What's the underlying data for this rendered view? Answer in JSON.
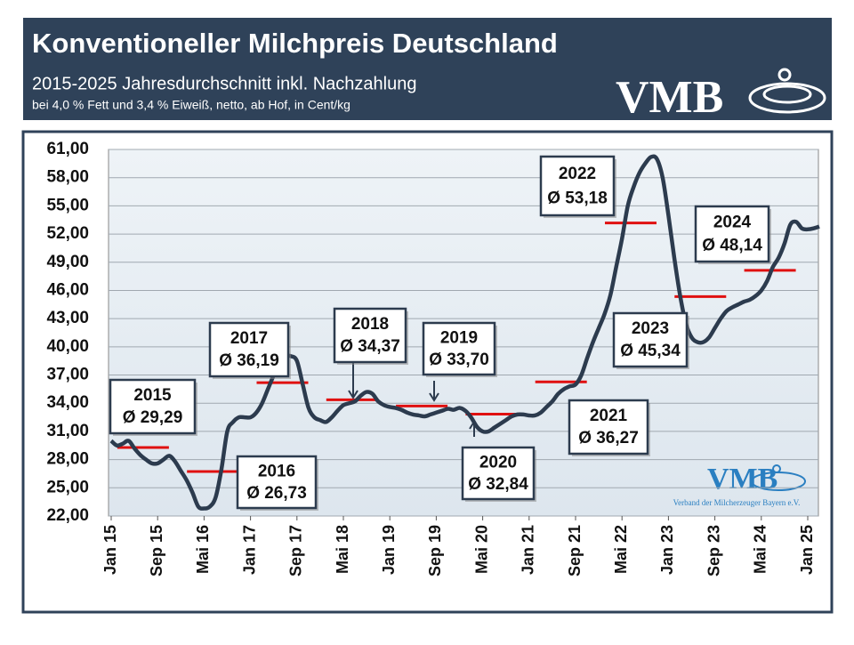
{
  "header": {
    "title": "Konventioneller Milchpreis Deutschland",
    "subtitle": "2015-2025 Jahresdurchschnitt inkl. Nachzahlung",
    "note": "bei 4,0 % Fett und 3,4 % Eiweiß, netto, ab Hof, in Cent/kg",
    "logo": "VMB"
  },
  "footer_logo": {
    "text": "VMB",
    "caption": "Verband der Milcherzeuger Bayern e.V."
  },
  "chart_data": {
    "type": "line",
    "categories": [
      "Jan 15",
      null,
      null,
      null,
      null,
      null,
      null,
      null,
      "Sep 15",
      null,
      null,
      null,
      null,
      null,
      null,
      null,
      "Mai 16",
      null,
      null,
      null,
      null,
      null,
      null,
      null,
      "Jan 17",
      null,
      null,
      null,
      null,
      null,
      null,
      null,
      "Sep 17",
      null,
      null,
      null,
      null,
      null,
      null,
      null,
      "Mai 18",
      null,
      null,
      null,
      null,
      null,
      null,
      null,
      "Jan 19",
      null,
      null,
      null,
      null,
      null,
      null,
      null,
      "Sep 19",
      null,
      null,
      null,
      null,
      null,
      null,
      null,
      "Mai 20",
      null,
      null,
      null,
      null,
      null,
      null,
      null,
      "Jan 21",
      null,
      null,
      null,
      null,
      null,
      null,
      null,
      "Sep 21",
      null,
      null,
      null,
      null,
      null,
      null,
      null,
      "Mai 22",
      null,
      null,
      null,
      null,
      null,
      null,
      null,
      "Jan 23",
      null,
      null,
      null,
      null,
      null,
      null,
      null,
      "Sep 23",
      null,
      null,
      null,
      null,
      null,
      null,
      null,
      "Mai 24",
      null,
      null,
      null,
      null,
      null,
      null,
      null,
      "Jan 25",
      null,
      null
    ],
    "series": [
      {
        "name": "Milchpreis",
        "color": "#2c3b4e",
        "values": [
          30.0,
          29.5,
          29.7,
          30.0,
          29.2,
          28.5,
          28.0,
          27.6,
          27.6,
          28.0,
          28.4,
          27.8,
          26.8,
          25.8,
          24.5,
          23.0,
          22.8,
          23.0,
          24.0,
          27.0,
          31.0,
          32.0,
          32.5,
          32.5,
          32.5,
          33.0,
          34.0,
          35.5,
          37.0,
          38.5,
          39.0,
          39.0,
          38.5,
          36.0,
          33.5,
          32.5,
          32.2,
          32.0,
          32.5,
          33.2,
          33.8,
          34.0,
          34.2,
          34.8,
          35.2,
          35.0,
          34.2,
          33.8,
          33.6,
          33.5,
          33.3,
          33.0,
          32.8,
          32.7,
          32.6,
          32.8,
          33.0,
          33.2,
          33.4,
          33.3,
          33.5,
          33.2,
          32.5,
          31.5,
          31.0,
          31.0,
          31.4,
          31.8,
          32.2,
          32.6,
          32.8,
          32.8,
          32.7,
          32.7,
          33.0,
          33.6,
          34.2,
          35.0,
          35.5,
          35.8,
          36.0,
          37.0,
          38.8,
          40.5,
          42.0,
          43.5,
          45.5,
          48.5,
          51.5,
          55.0,
          57.0,
          58.5,
          59.5,
          60.2,
          60.0,
          58.0,
          54.0,
          49.5,
          45.5,
          42.5,
          41.0,
          40.5,
          40.5,
          41.0,
          42.0,
          43.0,
          43.8,
          44.2,
          44.5,
          44.8,
          45.0,
          45.4,
          46.0,
          47.0,
          48.5,
          49.5,
          51.0,
          53.0,
          53.3,
          52.6,
          52.5,
          52.6,
          52.8
        ]
      }
    ],
    "ylim": [
      22,
      61
    ],
    "yticks": [
      {
        "value": 22,
        "label": "22,00"
      },
      {
        "value": 25,
        "label": "25,00"
      },
      {
        "value": 28,
        "label": "28,00"
      },
      {
        "value": 31,
        "label": "31,00"
      },
      {
        "value": 34,
        "label": "34,00"
      },
      {
        "value": 37,
        "label": "37,00"
      },
      {
        "value": 40,
        "label": "40,00"
      },
      {
        "value": 43,
        "label": "43,00"
      },
      {
        "value": 46,
        "label": "46,00"
      },
      {
        "value": 49,
        "label": "49,00"
      },
      {
        "value": 52,
        "label": "52,00"
      },
      {
        "value": 55,
        "label": "55,00"
      },
      {
        "value": 58,
        "label": "58,00"
      },
      {
        "value": 61,
        "label": "61,00"
      }
    ],
    "grid": true,
    "annual_averages": {
      "color": "#e01010",
      "years": [
        "2015",
        "2016",
        "2017",
        "2018",
        "2019",
        "2020",
        "2021",
        "2022",
        "2023",
        "2024"
      ],
      "values": [
        29.29,
        26.73,
        36.19,
        34.37,
        33.7,
        32.84,
        36.27,
        53.18,
        45.34,
        48.14
      ],
      "value_labels": [
        "Ø 29,29",
        "Ø 26,73",
        "Ø 36,19",
        "Ø 34,37",
        "Ø 33,70",
        "Ø 32,84",
        "Ø 36,27",
        "Ø 53,18",
        "Ø 45,34",
        "Ø 48,14"
      ]
    }
  }
}
